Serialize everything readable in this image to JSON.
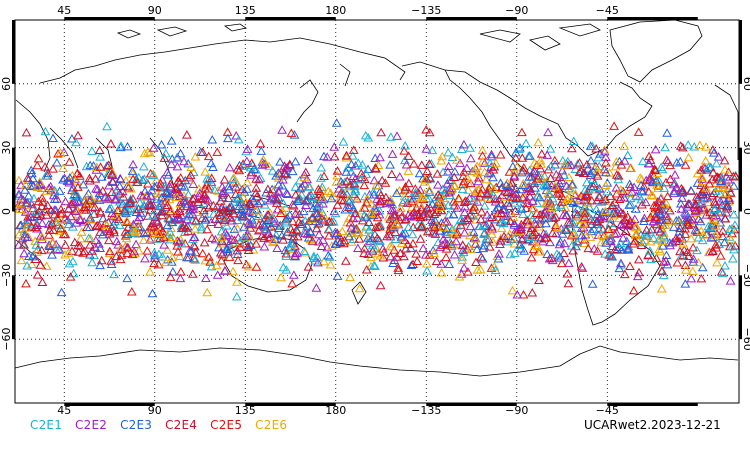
{
  "map": {
    "projection": "cylindrical-equidistant-pacific-centered",
    "lon_ticks_top": [
      "45",
      "90",
      "135",
      "180",
      "−135",
      "−90",
      "−45"
    ],
    "lon_ticks_bottom": [
      "45",
      "90",
      "135",
      "180",
      "−135",
      "−90",
      "−45"
    ],
    "lat_ticks_left": [
      "60",
      "30",
      "0",
      "−30",
      "−60"
    ],
    "lat_ticks_right": [
      "60",
      "30",
      "0",
      "−30",
      "−60"
    ],
    "lon_values": [
      45,
      90,
      135,
      180,
      -135,
      -90,
      -45
    ],
    "lat_values": [
      60,
      30,
      0,
      -30,
      -60
    ],
    "grid": true,
    "grid_style": "dotted",
    "coastline_color": "#000000",
    "symbol": "open-triangle",
    "lat_range": [
      -90,
      90
    ],
    "lon_range": [
      0,
      360
    ]
  },
  "legend": [
    {
      "label": "C2E1",
      "color": "#1ab2d6"
    },
    {
      "label": "C2E2",
      "color": "#a020c8"
    },
    {
      "label": "C2E3",
      "color": "#2060e0"
    },
    {
      "label": "C2E4",
      "color": "#c8102e"
    },
    {
      "label": "C2E5",
      "color": "#e01010"
    },
    {
      "label": "C2E6",
      "color": "#f0a800"
    }
  ],
  "caption": "UCARwet2.2023-12-21",
  "chart_data": {
    "type": "scatter",
    "title": "",
    "xlabel": "",
    "ylabel": "",
    "xlim": [
      0,
      360
    ],
    "ylim": [
      -90,
      90
    ],
    "density_latitude_band": [
      -45,
      45
    ],
    "series": [
      {
        "name": "C2E1",
        "color": "#1ab2d6"
      },
      {
        "name": "C2E2",
        "color": "#a020c8"
      },
      {
        "name": "C2E3",
        "color": "#2060e0"
      },
      {
        "name": "C2E4",
        "color": "#c8102e"
      },
      {
        "name": "C2E5",
        "color": "#e01010"
      },
      {
        "name": "C2E6",
        "color": "#f0a800"
      }
    ]
  }
}
